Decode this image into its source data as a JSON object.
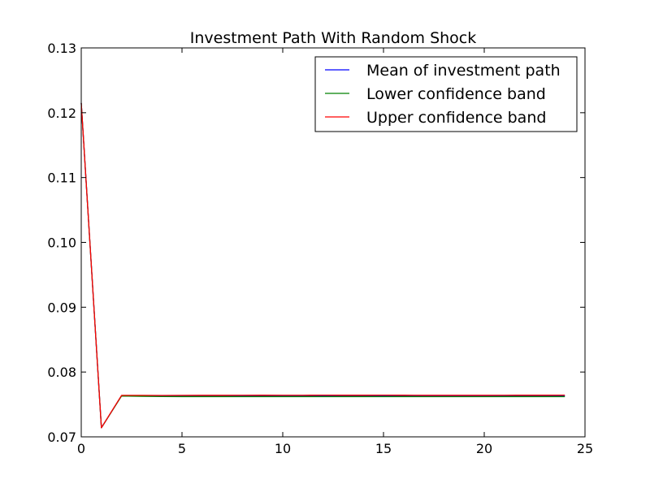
{
  "chart_data": {
    "type": "line",
    "title": "Investment Path With Random Shock",
    "xlabel": "",
    "ylabel": "",
    "xlim": [
      0,
      25
    ],
    "ylim": [
      0.07,
      0.13
    ],
    "x_ticks": [
      0,
      5,
      10,
      15,
      20,
      25
    ],
    "y_ticks": [
      0.07,
      0.08,
      0.09,
      0.1,
      0.11,
      0.12,
      0.13
    ],
    "x_tick_labels": [
      "0",
      "5",
      "10",
      "15",
      "20",
      "25"
    ],
    "y_tick_labels": [
      "0.07",
      "0.08",
      "0.09",
      "0.10",
      "0.11",
      "0.12",
      "0.13"
    ],
    "grid": false,
    "legend_position": "top-right",
    "x": [
      0,
      1,
      2,
      3,
      4,
      5,
      6,
      7,
      8,
      9,
      10,
      11,
      12,
      13,
      14,
      15,
      16,
      17,
      18,
      19,
      20,
      21,
      22,
      23,
      24
    ],
    "series": [
      {
        "name": "Mean of investment path",
        "color": "#0000ff",
        "values": [
          0.1215,
          0.0714,
          0.07635,
          0.07632,
          0.0763,
          0.0763,
          0.07631,
          0.07631,
          0.07632,
          0.07632,
          0.07631,
          0.07631,
          0.07632,
          0.07632,
          0.07632,
          0.07632,
          0.07632,
          0.07631,
          0.07631,
          0.07631,
          0.07631,
          0.07632,
          0.07632,
          0.07632,
          0.07632
        ]
      },
      {
        "name": "Lower confidence band",
        "color": "#008000",
        "values": [
          0.1215,
          0.0714,
          0.0763,
          0.07625,
          0.07622,
          0.07621,
          0.07621,
          0.07621,
          0.07621,
          0.07621,
          0.07621,
          0.07621,
          0.07621,
          0.07621,
          0.07621,
          0.07621,
          0.07621,
          0.0762,
          0.0762,
          0.0762,
          0.0762,
          0.07621,
          0.07621,
          0.07621,
          0.07621
        ]
      },
      {
        "name": "Upper confidence band",
        "color": "#ff0000",
        "values": [
          0.1215,
          0.0714,
          0.0764,
          0.0764,
          0.07639,
          0.0764,
          0.07641,
          0.07641,
          0.07642,
          0.07643,
          0.07642,
          0.07642,
          0.07644,
          0.07643,
          0.07643,
          0.07644,
          0.07643,
          0.07641,
          0.07641,
          0.07641,
          0.07641,
          0.07642,
          0.07643,
          0.07643,
          0.07644
        ]
      }
    ]
  }
}
